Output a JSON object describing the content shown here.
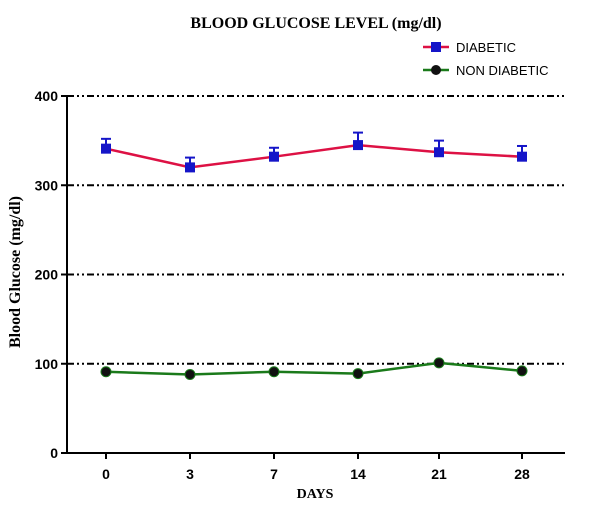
{
  "chart_data": {
    "type": "line",
    "title": "BLOOD GLUCOSE LEVEL (mg/dl)",
    "xlabel": "DAYS",
    "ylabel": "Blood Glucose (mg/dl)",
    "categories": [
      "0",
      "3",
      "7",
      "14",
      "21",
      "28"
    ],
    "ylim": [
      0,
      400
    ],
    "yticks": [
      0,
      100,
      200,
      300,
      400
    ],
    "grid": "horizontal dash-dot lines at y ticks",
    "legend_position": "top-right",
    "series": [
      {
        "name": "DIABETIC",
        "values": [
          341,
          320,
          332,
          345,
          337,
          332
        ],
        "errors": [
          11,
          11,
          10,
          14,
          13,
          12
        ],
        "line_color": "#dd1144",
        "marker_color": "#1515c8",
        "marker": "square"
      },
      {
        "name": "NON DIABETIC",
        "values": [
          91,
          88,
          91,
          89,
          101,
          92
        ],
        "errors": [
          0,
          0,
          0,
          0,
          0,
          0
        ],
        "line_color": "#1a7a1a",
        "marker_color": "#111111",
        "marker": "circle"
      }
    ]
  }
}
